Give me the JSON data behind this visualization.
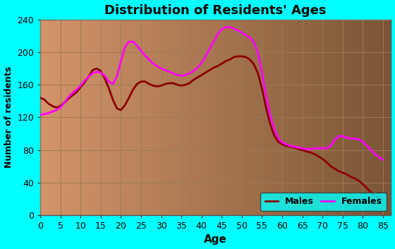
{
  "title": "Distribution of Residents' Ages",
  "xlabel": "Age",
  "ylabel": "Number of residents",
  "background_outer": "#00FFFF",
  "background_inner_left": "#D4956A",
  "background_inner_right": "#7A5535",
  "grid_color": "#9B7B55",
  "xlim": [
    0,
    87
  ],
  "ylim": [
    0,
    240
  ],
  "xticks": [
    0,
    5,
    10,
    15,
    20,
    25,
    30,
    35,
    40,
    45,
    50,
    55,
    60,
    65,
    70,
    75,
    80,
    85
  ],
  "yticks": [
    0,
    40,
    80,
    120,
    160,
    200,
    240
  ],
  "male_color": "#8B0000",
  "female_color": "#FF00FF",
  "legend_facecolor": "#00FFFF",
  "ages": [
    0,
    1,
    2,
    3,
    4,
    5,
    6,
    7,
    8,
    9,
    10,
    11,
    12,
    13,
    14,
    15,
    16,
    17,
    18,
    19,
    20,
    21,
    22,
    23,
    24,
    25,
    26,
    27,
    28,
    29,
    30,
    31,
    32,
    33,
    34,
    35,
    36,
    37,
    38,
    39,
    40,
    41,
    42,
    43,
    44,
    45,
    46,
    47,
    48,
    49,
    50,
    51,
    52,
    53,
    54,
    55,
    56,
    57,
    58,
    59,
    60,
    61,
    62,
    63,
    64,
    65,
    66,
    67,
    68,
    69,
    70,
    71,
    72,
    73,
    74,
    75,
    76,
    77,
    78,
    79,
    80,
    81,
    82,
    83,
    84,
    85
  ],
  "males": [
    148,
    142,
    138,
    133,
    130,
    132,
    138,
    145,
    150,
    148,
    158,
    163,
    168,
    182,
    190,
    178,
    170,
    163,
    138,
    122,
    124,
    132,
    145,
    158,
    165,
    168,
    165,
    162,
    158,
    155,
    160,
    163,
    165,
    163,
    160,
    158,
    158,
    162,
    167,
    170,
    173,
    176,
    179,
    181,
    184,
    186,
    189,
    192,
    195,
    197,
    197,
    195,
    192,
    189,
    185,
    158,
    128,
    108,
    92,
    88,
    86,
    86,
    85,
    84,
    82,
    80,
    79,
    78,
    76,
    74,
    70,
    65,
    60,
    57,
    54,
    52,
    50,
    48,
    46,
    44,
    38,
    33,
    28,
    24,
    20,
    18
  ],
  "females": [
    122,
    124,
    126,
    128,
    130,
    128,
    138,
    148,
    155,
    150,
    160,
    167,
    172,
    175,
    178,
    180,
    172,
    165,
    155,
    145,
    205,
    212,
    222,
    215,
    208,
    202,
    196,
    190,
    186,
    183,
    180,
    178,
    176,
    174,
    172,
    170,
    171,
    174,
    177,
    180,
    187,
    194,
    204,
    214,
    223,
    232,
    235,
    233,
    230,
    227,
    224,
    222,
    220,
    217,
    213,
    178,
    142,
    118,
    102,
    92,
    87,
    87,
    86,
    85,
    83,
    82,
    80,
    81,
    84,
    84,
    82,
    80,
    78,
    96,
    104,
    99,
    93,
    92,
    98,
    96,
    90,
    86,
    80,
    75,
    70,
    66
  ]
}
